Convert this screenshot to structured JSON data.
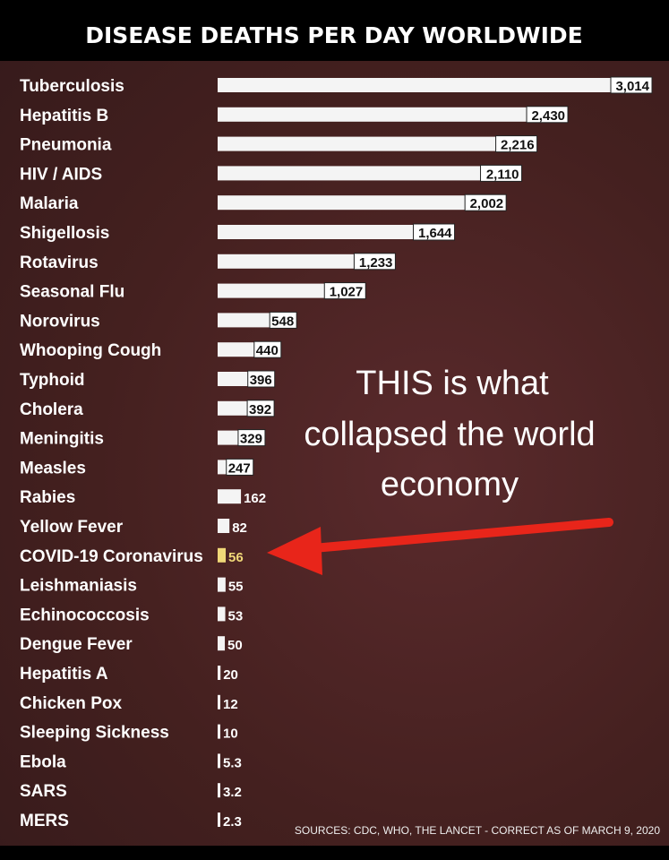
{
  "chart_data": {
    "type": "bar",
    "orientation": "horizontal",
    "title": "DISEASE DEATHS PER DAY WORLDWIDE",
    "categories": [
      "Tuberculosis",
      "Hepatitis B",
      "Pneumonia",
      "HIV / AIDS",
      "Malaria",
      "Shigellosis",
      "Rotavirus",
      "Seasonal Flu",
      "Norovirus",
      "Whooping Cough",
      "Typhoid",
      "Cholera",
      "Meningitis",
      "Measles",
      "Rabies",
      "Yellow Fever",
      "COVID-19 Coronavirus",
      "Leishmaniasis",
      "Echinococcosis",
      "Dengue Fever",
      "Hepatitis A",
      "Chicken Pox",
      "Sleeping Sickness",
      "Ebola",
      "SARS",
      "MERS"
    ],
    "values": [
      3014,
      2430,
      2216,
      2110,
      2002,
      1644,
      1233,
      1027,
      548,
      440,
      396,
      392,
      329,
      247,
      162,
      82,
      56,
      55,
      53,
      50,
      20,
      12,
      10,
      5.3,
      3.2,
      2.3
    ],
    "value_labels": [
      "3,014",
      "2,430",
      "2,216",
      "2,110",
      "2,002",
      "1,644",
      "1,233",
      "1,027",
      "548",
      "440",
      "396",
      "392",
      "329",
      "247",
      "162",
      "82",
      "56",
      "55",
      "53",
      "50",
      "20",
      "12",
      "10",
      "5.3",
      "3.2",
      "2.3"
    ],
    "highlight_category": "COVID-19 Coronavirus",
    "annotation": [
      "THIS is what",
      "collapsed the world",
      "economy"
    ],
    "source": "SOURCES: CDC, WHO, THE LANCET - CORRECT AS OF MARCH 9, 2020",
    "xlim": [
      0,
      3014
    ],
    "grid": false,
    "colors": {
      "bar": "#f4f4f4",
      "highlight": "#f0d878",
      "arrow": "#e8251a",
      "background": "#44201f",
      "header": "#000000"
    }
  }
}
